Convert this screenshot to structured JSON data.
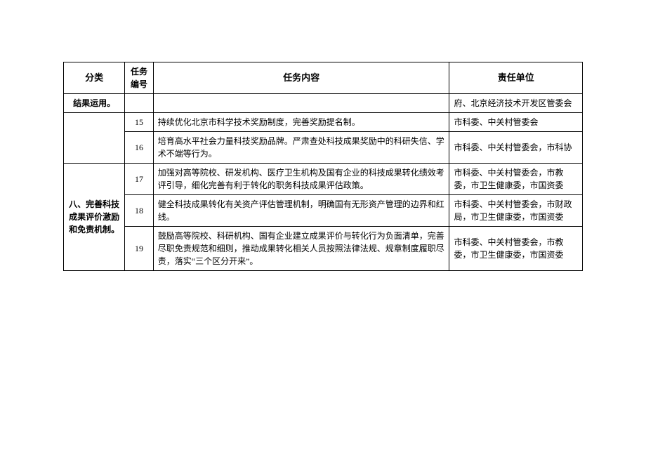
{
  "columns": {
    "category": "分类",
    "num": "任务\n编号",
    "task": "任务内容",
    "resp": "责任单位"
  },
  "category1": "结果运用。",
  "category2": "八、完善科技成果评价激励和免责机制。",
  "row14_resp": "府、北京经济技术开发区管委会",
  "rows": [
    {
      "num": "15",
      "task": "持续优化北京市科学技术奖励制度，完善奖励提名制。",
      "resp": "市科委、中关村管委会"
    },
    {
      "num": "16",
      "task": "培育高水平社会力量科技奖励品牌。严肃查处科技成果奖励中的科研失信、学术不端等行为。",
      "resp": "市科委、中关村管委会，市科协"
    },
    {
      "num": "17",
      "task": "加强对高等院校、研发机构、医疗卫生机构及国有企业的科技成果转化绩效考评引导，细化完善有利于转化的职务科技成果评估政策。",
      "resp": "市科委、中关村管委会，市教委，市卫生健康委，市国资委"
    },
    {
      "num": "18",
      "task": "健全科技成果转化有关资产评估管理机制，明确国有无形资产管理的边界和红线。",
      "resp": "市科委、中关村管委会，市财政局，市卫生健康委，市国资委"
    },
    {
      "num": "19",
      "task": "鼓励高等院校、科研机构、国有企业建立成果评价与转化行为负面清单，完善尽职免责规范和细则，推动成果转化相关人员按照法律法规、规章制度履职尽责，落实“三个区分开来”。",
      "resp": "市科委、中关村管委会，市教委，市卫生健康委，市国资委"
    }
  ]
}
